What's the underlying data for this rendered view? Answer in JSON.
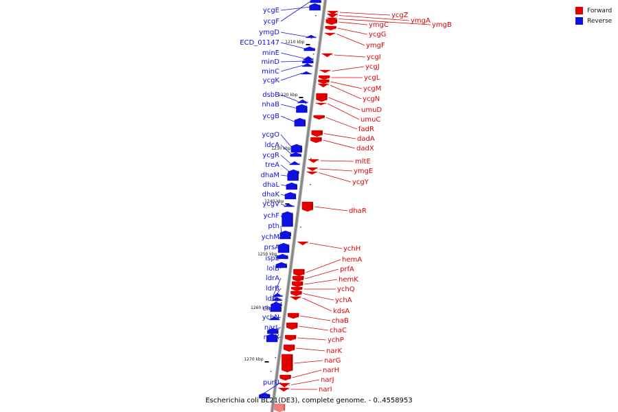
{
  "legend": {
    "forward_label": "Forward",
    "reverse_label": "Reverse",
    "forward_color": "#e00000",
    "reverse_color": "#1010e0"
  },
  "caption": "Escherichia coli BL21(DE3), complete genome. - 0..4558953",
  "backbone_color": "#888888",
  "ticks": [
    {
      "label": "1210 kbp",
      "kbp": 1210
    },
    {
      "label": "1220 kbp",
      "kbp": 1220
    },
    {
      "label": "1230 kbp",
      "kbp": 1230
    },
    {
      "label": "1240 kbp",
      "kbp": 1240
    },
    {
      "label": "1250 kbp",
      "kbp": 1250
    },
    {
      "label": "1260 kbp",
      "kbp": 1260
    },
    {
      "label": "1270 kbp",
      "kbp": 1270
    }
  ],
  "reverse_genes": [
    "ycgE",
    "ycgF",
    "ymgD",
    "ECD_01147",
    "minE",
    "minD",
    "minC",
    "ycgK",
    "dsbB",
    "nhaB",
    "ycgB",
    "ycgO",
    "ldcA",
    "ycgR",
    "treA",
    "dhaM",
    "dhaL",
    "dhaK",
    "ycgV",
    "ychF",
    "pth",
    "ychM",
    "prsA",
    "ispE",
    "lolB",
    "ldrA",
    "ldrB",
    "ldrC",
    "chaA",
    "ychN",
    "narL",
    "narX",
    "purU"
  ],
  "forward_genes": [
    "ycgZ",
    "ymgA",
    "ymgB",
    "ymgC",
    "ycgG",
    "ymgF",
    "ycgI",
    "ycgJ",
    "ycgL",
    "ycgM",
    "ycgN",
    "umuD",
    "umuC",
    "fadR",
    "dadA",
    "dadX",
    "mltE",
    "ymgE",
    "ycgY",
    "dhaR",
    "ychH",
    "hemA",
    "prfA",
    "hemK",
    "ychQ",
    "ychA",
    "kdsA",
    "chaB",
    "chaC",
    "ychP",
    "narK",
    "narG",
    "narH",
    "narJ",
    "narI"
  ]
}
